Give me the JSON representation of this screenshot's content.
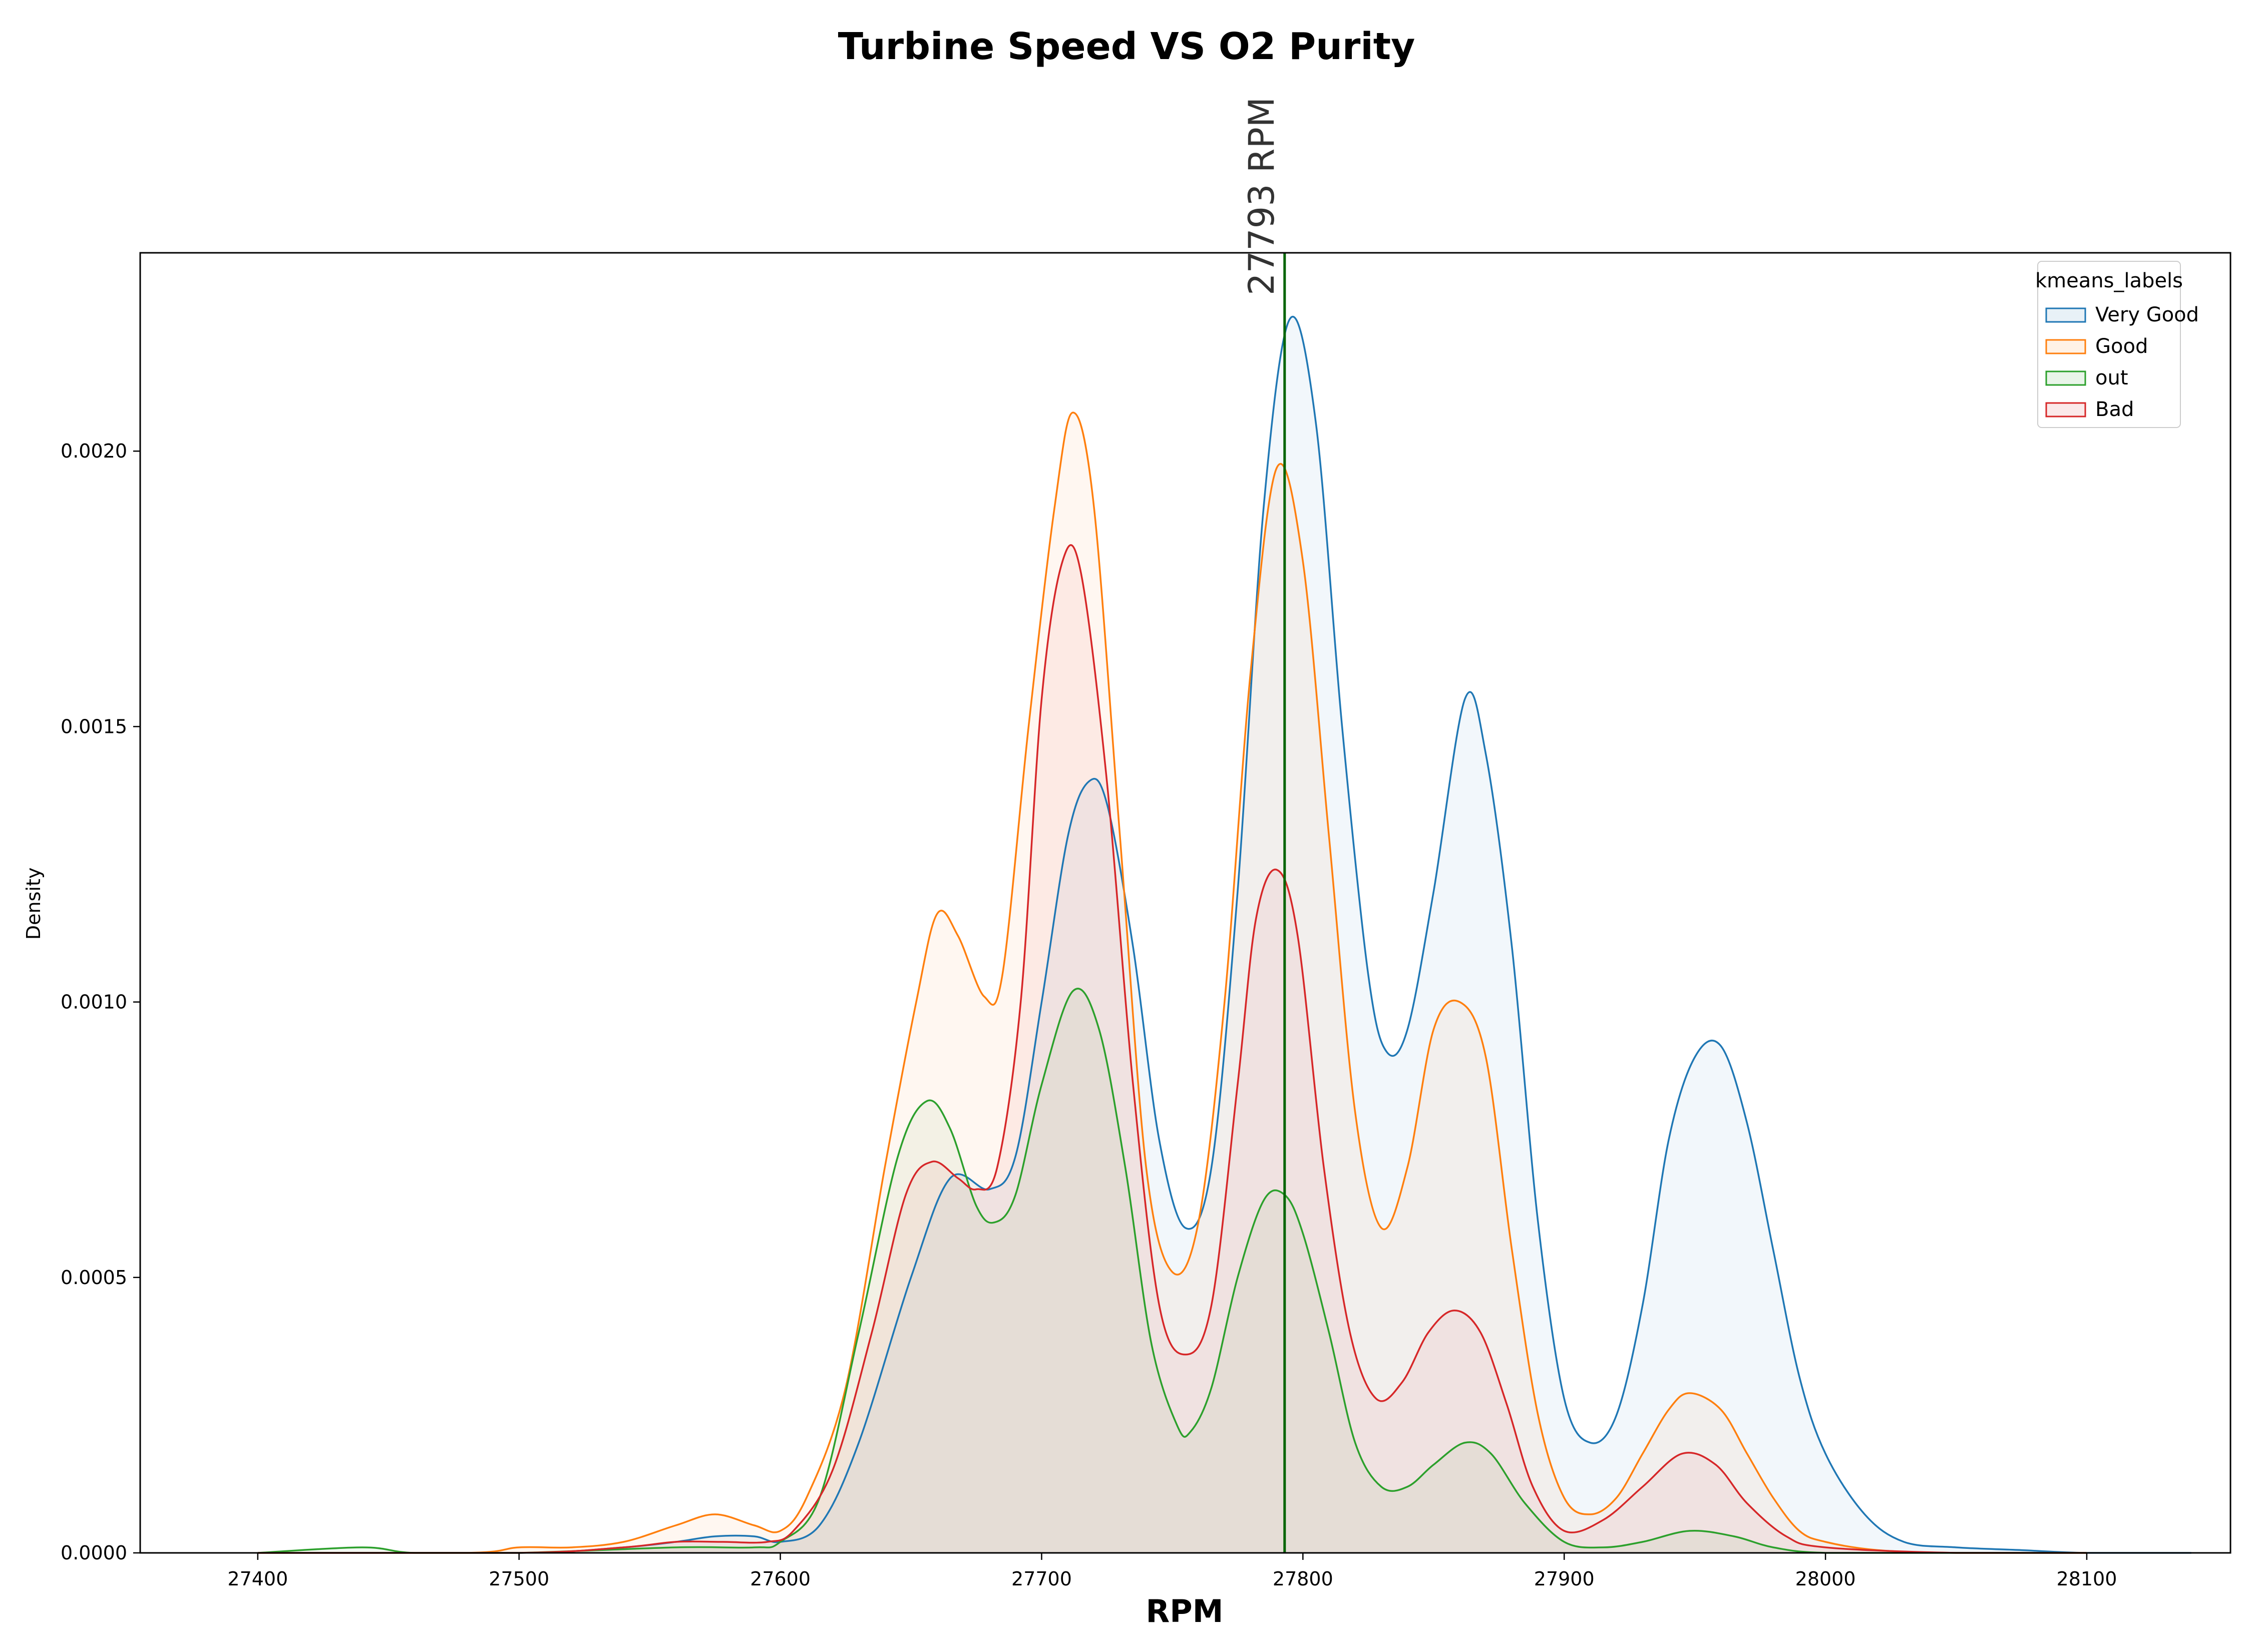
{
  "chart_data": {
    "type": "area",
    "title": "Turbine Speed VS O2 Purity",
    "xlabel": "RPM",
    "ylabel": "Density",
    "xlim": [
      27355,
      28155
    ],
    "ylim": [
      0,
      0.00236
    ],
    "xticks": [
      27400,
      27500,
      27600,
      27700,
      27800,
      27900,
      28000,
      28100
    ],
    "yticks": [
      0.0,
      0.0005,
      0.001,
      0.0015,
      0.002
    ],
    "ytick_labels": [
      "0.0000",
      "0.0005",
      "0.0010",
      "0.0015",
      "0.0020"
    ],
    "grid": false,
    "legend": {
      "title": "kmeans_labels",
      "placement": "top-right"
    },
    "vline": {
      "x": 27793,
      "label": "27793 RPM",
      "color": "#006400"
    },
    "series": [
      {
        "name": "Very Good",
        "color": "#1f77b4",
        "x": [
          27400,
          27500,
          27540,
          27560,
          27575,
          27590,
          27600,
          27615,
          27630,
          27650,
          27665,
          27680,
          27690,
          27700,
          27710,
          27718,
          27725,
          27735,
          27745,
          27755,
          27765,
          27775,
          27785,
          27795,
          27805,
          27815,
          27825,
          27832,
          27840,
          27850,
          27862,
          27870,
          27880,
          27890,
          27900,
          27910,
          27920,
          27930,
          27940,
          27950,
          27960,
          27970,
          27980,
          27990,
          28000,
          28015,
          28030,
          28050,
          28075,
          28100,
          28140
        ],
        "y": [
          0.0,
          0.0,
          1e-05,
          2e-05,
          3e-05,
          3e-05,
          2e-05,
          5e-05,
          0.0002,
          0.0005,
          0.00068,
          0.00066,
          0.00072,
          0.001,
          0.0013,
          0.0014,
          0.00136,
          0.0011,
          0.00075,
          0.00059,
          0.0007,
          0.0012,
          0.0019,
          0.00224,
          0.00205,
          0.0015,
          0.00105,
          0.00091,
          0.00095,
          0.0012,
          0.00155,
          0.00145,
          0.0011,
          0.0006,
          0.00028,
          0.0002,
          0.00025,
          0.00045,
          0.00075,
          0.0009,
          0.00092,
          0.00078,
          0.00055,
          0.00032,
          0.00018,
          7e-05,
          2e-05,
          1e-05,
          5e-06,
          0.0,
          0.0
        ]
      },
      {
        "name": "Good",
        "color": "#ff7f0e",
        "x": [
          27400,
          27480,
          27500,
          27520,
          27540,
          27560,
          27575,
          27590,
          27600,
          27610,
          27625,
          27640,
          27652,
          27660,
          27668,
          27678,
          27685,
          27695,
          27705,
          27712,
          27720,
          27730,
          27740,
          27750,
          27760,
          27770,
          27780,
          27790,
          27800,
          27810,
          27820,
          27830,
          27840,
          27850,
          27860,
          27870,
          27880,
          27890,
          27900,
          27910,
          27920,
          27930,
          27940,
          27948,
          27960,
          27970,
          27980,
          27990,
          28000,
          28020,
          28050,
          28100
        ],
        "y": [
          0.0,
          0.0,
          1e-05,
          1e-05,
          2e-05,
          5e-05,
          7e-05,
          5e-05,
          4e-05,
          0.0001,
          0.0003,
          0.0007,
          0.001,
          0.00116,
          0.00112,
          0.00101,
          0.00105,
          0.0015,
          0.0019,
          0.00207,
          0.0019,
          0.0013,
          0.0007,
          0.00051,
          0.0006,
          0.001,
          0.0016,
          0.00197,
          0.0018,
          0.0013,
          0.0008,
          0.00059,
          0.0007,
          0.00095,
          0.001,
          0.0009,
          0.00055,
          0.00025,
          0.0001,
          7e-05,
          0.0001,
          0.00018,
          0.00026,
          0.00029,
          0.00026,
          0.00018,
          0.0001,
          4e-05,
          2e-05,
          5e-06,
          0.0,
          0.0
        ]
      },
      {
        "name": "out",
        "color": "#2ca02c",
        "x": [
          27400,
          27440,
          27460,
          27500,
          27560,
          27590,
          27600,
          27615,
          27630,
          27645,
          27656,
          27665,
          27675,
          27682,
          27690,
          27700,
          27712,
          27722,
          27732,
          27742,
          27752,
          27757,
          27765,
          27775,
          27785,
          27793,
          27800,
          27810,
          27820,
          27830,
          27840,
          27850,
          27862,
          27872,
          27885,
          27900,
          27915,
          27930,
          27948,
          27965,
          27980,
          28000,
          28050,
          28100
        ],
        "y": [
          0.0,
          1e-05,
          0.0,
          0.0,
          1e-05,
          1e-05,
          2e-05,
          0.0001,
          0.0004,
          0.00072,
          0.00082,
          0.00077,
          0.00063,
          0.0006,
          0.00065,
          0.00085,
          0.00102,
          0.00095,
          0.0007,
          0.00038,
          0.00023,
          0.00022,
          0.0003,
          0.0005,
          0.00064,
          0.00065,
          0.00058,
          0.0004,
          0.0002,
          0.00012,
          0.00012,
          0.00016,
          0.0002,
          0.00018,
          9e-05,
          2e-05,
          1e-05,
          2e-05,
          4e-05,
          3e-05,
          1e-05,
          0.0,
          0.0,
          0.0
        ]
      },
      {
        "name": "Bad",
        "color": "#d62728",
        "x": [
          27400,
          27500,
          27540,
          27560,
          27578,
          27595,
          27605,
          27620,
          27635,
          27648,
          27658,
          27668,
          27675,
          27683,
          27692,
          27700,
          27708,
          27715,
          27725,
          27735,
          27745,
          27755,
          27765,
          27775,
          27782,
          27790,
          27798,
          27808,
          27818,
          27828,
          27838,
          27848,
          27858,
          27868,
          27878,
          27888,
          27900,
          27915,
          27930,
          27945,
          27958,
          27970,
          27985,
          28000,
          28050,
          28100
        ],
        "y": [
          0.0,
          0.0,
          1e-05,
          2e-05,
          2e-05,
          2e-05,
          4e-05,
          0.00015,
          0.0004,
          0.00065,
          0.00071,
          0.00068,
          0.00066,
          0.0007,
          0.001,
          0.00155,
          0.0018,
          0.00178,
          0.0014,
          0.00085,
          0.00045,
          0.00036,
          0.00045,
          0.00085,
          0.00115,
          0.00124,
          0.00112,
          0.0007,
          0.0004,
          0.00028,
          0.00031,
          0.0004,
          0.00044,
          0.0004,
          0.00027,
          0.00012,
          4e-05,
          6e-05,
          0.00012,
          0.00018,
          0.00016,
          9e-05,
          3e-05,
          1e-05,
          0.0,
          0.0
        ]
      }
    ]
  }
}
